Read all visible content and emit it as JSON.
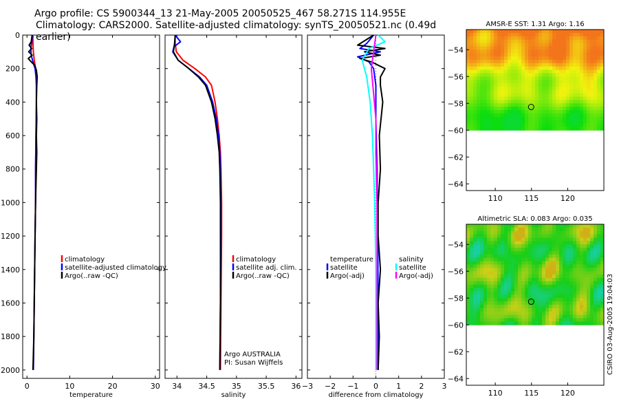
{
  "title": {
    "line1": "Argo profile: CS 5900344_13 21-May-2005 20050525_467 58.271S 114.955E",
    "line2": "Climatology: CARS2000. Satellite-adjusted climatology: synTS_20050521.nc (0.49d earlier)"
  },
  "credit": "CSIRO 03-Aug-2005 19:04:03",
  "chart_data": [
    {
      "type": "line",
      "name": "temperature-profile",
      "xlabel": "temperature",
      "xlim": [
        -1,
        31
      ],
      "ylim": [
        2050,
        0
      ],
      "xticks": [
        0,
        10,
        20,
        30
      ],
      "yticks": [
        0,
        200,
        400,
        600,
        800,
        1000,
        1200,
        1400,
        1600,
        1800,
        2000
      ],
      "legend": [
        "climatology",
        "satellite-adjusted climatology",
        "Argo(..raw -QC)"
      ],
      "series": [
        {
          "name": "climatology",
          "color": "#ff0000",
          "points": [
            [
              1.4,
              0
            ],
            [
              1.4,
              50
            ],
            [
              1.5,
              100
            ],
            [
              1.7,
              150
            ],
            [
              2.0,
              200
            ],
            [
              2.2,
              250
            ],
            [
              2.2,
              300
            ],
            [
              2.2,
              400
            ],
            [
              2.1,
              600
            ],
            [
              2.0,
              800
            ],
            [
              2.0,
              1000
            ],
            [
              1.9,
              1200
            ],
            [
              1.8,
              1400
            ],
            [
              1.7,
              1600
            ],
            [
              1.6,
              1800
            ],
            [
              1.5,
              2000
            ]
          ]
        },
        {
          "name": "satellite-adjusted climatology",
          "color": "#0000ff",
          "points": [
            [
              1.3,
              0
            ],
            [
              1.1,
              40
            ],
            [
              0.9,
              80
            ],
            [
              1.0,
              120
            ],
            [
              1.4,
              160
            ],
            [
              1.9,
              200
            ],
            [
              2.1,
              250
            ],
            [
              2.2,
              300
            ],
            [
              2.2,
              400
            ],
            [
              2.1,
              600
            ],
            [
              2.0,
              800
            ],
            [
              2.0,
              1000
            ],
            [
              1.9,
              1200
            ],
            [
              1.8,
              1400
            ],
            [
              1.7,
              1600
            ],
            [
              1.6,
              1800
            ],
            [
              1.5,
              2000
            ]
          ]
        },
        {
          "name": "Argo(..raw -QC)",
          "color": "#000000",
          "points": [
            [
              1.2,
              0
            ],
            [
              1.0,
              40
            ],
            [
              0.5,
              60
            ],
            [
              1.1,
              80
            ],
            [
              0.4,
              100
            ],
            [
              1.2,
              120
            ],
            [
              0.3,
              140
            ],
            [
              1.0,
              160
            ],
            [
              1.8,
              180
            ],
            [
              2.2,
              210
            ],
            [
              2.4,
              250
            ],
            [
              2.3,
              300
            ],
            [
              2.2,
              400
            ],
            [
              2.3,
              500
            ],
            [
              2.2,
              600
            ],
            [
              2.3,
              700
            ],
            [
              2.2,
              800
            ],
            [
              2.1,
              900
            ],
            [
              2.0,
              1000
            ],
            [
              1.9,
              1200
            ],
            [
              1.8,
              1400
            ],
            [
              1.7,
              1600
            ],
            [
              1.6,
              1800
            ],
            [
              1.4,
              2000
            ]
          ]
        }
      ]
    },
    {
      "type": "line",
      "name": "salinity-profile",
      "xlabel": "salinity",
      "xlim": [
        33.8,
        36.1
      ],
      "ylim": [
        2050,
        0
      ],
      "xticks": [
        34,
        34.5,
        35,
        35.5,
        36
      ],
      "legend": [
        "climatology",
        "satellite adj. clim.",
        "Argo(..raw -QC)"
      ],
      "annotation": [
        "Argo AUSTRALIA",
        "PI: Susan Wijffels"
      ],
      "series": [
        {
          "name": "climatology",
          "color": "#ff0000",
          "points": [
            [
              33.97,
              0
            ],
            [
              33.97,
              50
            ],
            [
              33.99,
              100
            ],
            [
              34.1,
              150
            ],
            [
              34.3,
              200
            ],
            [
              34.48,
              250
            ],
            [
              34.58,
              300
            ],
            [
              34.64,
              400
            ],
            [
              34.68,
              500
            ],
            [
              34.71,
              600
            ],
            [
              34.73,
              700
            ],
            [
              34.74,
              800
            ],
            [
              34.75,
              1000
            ],
            [
              34.75,
              1200
            ],
            [
              34.74,
              1600
            ],
            [
              34.73,
              2000
            ]
          ]
        },
        {
          "name": "satellite adj. clim.",
          "color": "#0000ff",
          "points": [
            [
              33.97,
              0
            ],
            [
              34.06,
              40
            ],
            [
              33.95,
              70
            ],
            [
              33.93,
              100
            ],
            [
              34.02,
              150
            ],
            [
              34.2,
              200
            ],
            [
              34.38,
              250
            ],
            [
              34.5,
              300
            ],
            [
              34.6,
              400
            ],
            [
              34.66,
              500
            ],
            [
              34.7,
              600
            ],
            [
              34.72,
              700
            ],
            [
              34.73,
              800
            ],
            [
              34.74,
              1000
            ],
            [
              34.74,
              1200
            ],
            [
              34.73,
              1600
            ],
            [
              34.72,
              2000
            ]
          ]
        },
        {
          "name": "Argo(..raw -QC)",
          "color": "#000000",
          "points": [
            [
              33.97,
              0
            ],
            [
              33.96,
              50
            ],
            [
              33.94,
              100
            ],
            [
              34.02,
              150
            ],
            [
              34.2,
              200
            ],
            [
              34.36,
              250
            ],
            [
              34.48,
              300
            ],
            [
              34.58,
              400
            ],
            [
              34.64,
              500
            ],
            [
              34.68,
              600
            ],
            [
              34.71,
              700
            ],
            [
              34.72,
              800
            ],
            [
              34.73,
              1000
            ],
            [
              34.73,
              1200
            ],
            [
              34.73,
              1600
            ],
            [
              34.72,
              2000
            ]
          ]
        }
      ]
    },
    {
      "type": "line",
      "name": "difference-profile",
      "xlabel": "difference from climatology",
      "xlim": [
        -3,
        3
      ],
      "ylim": [
        2050,
        0
      ],
      "xticks": [
        -3,
        -2,
        -1,
        0,
        1,
        2,
        3
      ],
      "legend_left": [
        "temperature",
        "satellite",
        "Argo(-adj)"
      ],
      "legend_right": [
        "salinity",
        "satellite",
        "Argo(-adj)"
      ],
      "series": [
        {
          "name": "temperature satellite",
          "color": "#0000ff",
          "points": [
            [
              -0.1,
              0
            ],
            [
              -0.4,
              50
            ],
            [
              -0.7,
              80
            ],
            [
              0.2,
              100
            ],
            [
              -0.8,
              130
            ],
            [
              -0.3,
              160
            ],
            [
              -0.1,
              200
            ],
            [
              0.0,
              300
            ],
            [
              0.0,
              500
            ],
            [
              0.05,
              800
            ],
            [
              0.08,
              1200
            ],
            [
              0.1,
              1600
            ],
            [
              0.1,
              2000
            ]
          ]
        },
        {
          "name": "temperature Argo(-adj)",
          "color": "#000000",
          "points": [
            [
              -0.1,
              0
            ],
            [
              -0.8,
              60
            ],
            [
              0.4,
              80
            ],
            [
              -0.5,
              100
            ],
            [
              0.2,
              120
            ],
            [
              -0.7,
              140
            ],
            [
              -0.2,
              160
            ],
            [
              0.4,
              200
            ],
            [
              0.2,
              250
            ],
            [
              0.2,
              300
            ],
            [
              0.3,
              400
            ],
            [
              0.15,
              600
            ],
            [
              0.2,
              800
            ],
            [
              0.1,
              1000
            ],
            [
              0.1,
              1200
            ],
            [
              0.2,
              1400
            ],
            [
              0.1,
              1600
            ],
            [
              0.15,
              1800
            ],
            [
              0.1,
              2000
            ]
          ]
        },
        {
          "name": "salinity satellite",
          "color": "#00ffff",
          "points": [
            [
              0.1,
              0
            ],
            [
              0.4,
              40
            ],
            [
              -0.3,
              80
            ],
            [
              -0.6,
              150
            ],
            [
              -0.4,
              250
            ],
            [
              -0.25,
              400
            ],
            [
              -0.15,
              600
            ],
            [
              -0.1,
              800
            ],
            [
              -0.05,
              1000
            ],
            [
              0.0,
              1400
            ],
            [
              0.0,
              2000
            ]
          ]
        },
        {
          "name": "salinity Argo(-adj)",
          "color": "#ff00ff",
          "points": [
            [
              0.0,
              0
            ],
            [
              -0.1,
              100
            ],
            [
              -0.2,
              200
            ],
            [
              -0.1,
              350
            ],
            [
              0.0,
              500
            ],
            [
              0.0,
              700
            ],
            [
              0.05,
              1000
            ],
            [
              0.05,
              1400
            ],
            [
              0.05,
              2000
            ]
          ]
        }
      ]
    },
    {
      "type": "heatmap",
      "name": "sst-map",
      "title": "AMSR-E SST: 1.31 Argo: 1.16",
      "xlim": [
        106,
        125
      ],
      "ylim": [
        -64.5,
        -52.5
      ],
      "xticks": [
        110,
        115,
        120
      ],
      "yticks": [
        -54,
        -56,
        -58,
        -60,
        -62,
        -64
      ],
      "data_bottom": -60,
      "marker": {
        "lon": 114.955,
        "lat": -58.271
      }
    },
    {
      "type": "heatmap",
      "name": "sla-map",
      "title": "Altimetric SLA: 0.083 Argo: 0.035",
      "xlim": [
        106,
        125
      ],
      "ylim": [
        -64.5,
        -52.5
      ],
      "xticks": [
        110,
        115,
        120
      ],
      "yticks": [
        -54,
        -56,
        -58,
        -60,
        -62,
        -64
      ],
      "data_bottom": -60,
      "marker": {
        "lon": 114.955,
        "lat": -58.271
      }
    }
  ]
}
